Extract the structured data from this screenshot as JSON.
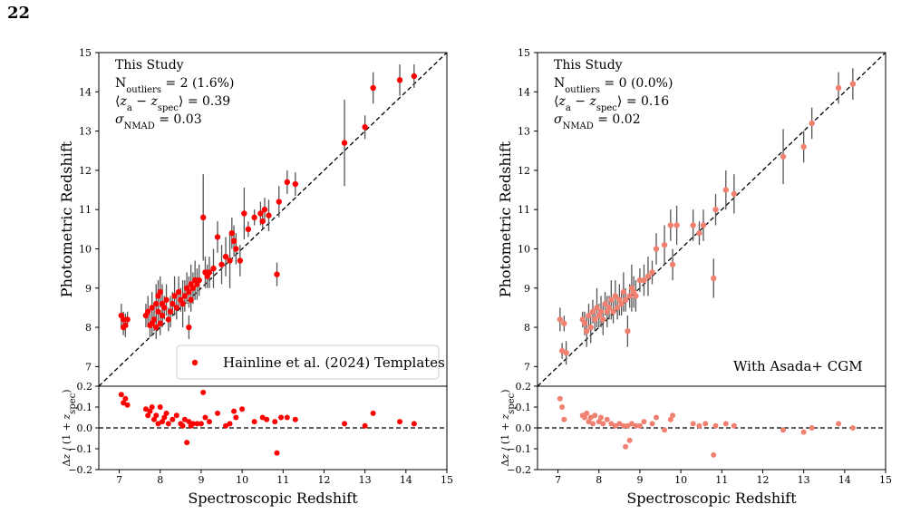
{
  "page": {
    "number": "22"
  },
  "chart_data": [
    {
      "type": "scatter",
      "panel": "left",
      "main": {
        "xlim": [
          6.5,
          15
        ],
        "ylim": [
          6.5,
          15
        ],
        "xticks": [
          "7",
          "8",
          "9",
          "10",
          "11",
          "12",
          "13",
          "14",
          "15"
        ],
        "yticks": [
          "7",
          "8",
          "9",
          "10",
          "11",
          "12",
          "13",
          "14",
          "15"
        ],
        "ylabel": "Photometric Redshift",
        "reference_line": "one-to-one dashed",
        "annotations": [
          "This Study",
          "N_outliers = 2 (1.6%)",
          "⟨z_a − z_spec⟩ = 0.39",
          "σ_NMAD = 0.03"
        ],
        "legend": {
          "label": "Hainline et al. (2024) Templates",
          "position": "lower-right"
        },
        "marker_color": "#ff0000",
        "series": [
          {
            "x": [
              7.05,
              7.1,
              7.1,
              7.15,
              7.2,
              7.65,
              7.7,
              7.75,
              7.8,
              7.8,
              7.85,
              7.9,
              7.9,
              7.95,
              7.95,
              8.0,
              8.0,
              8.05,
              8.05,
              8.1,
              8.15,
              8.2,
              8.25,
              8.3,
              8.35,
              8.4,
              8.45,
              8.5,
              8.55,
              8.6,
              8.65,
              8.7,
              8.7,
              8.75,
              8.75,
              8.8,
              8.85,
              8.9,
              8.95,
              9.05,
              9.1,
              9.15,
              9.2,
              9.3,
              9.4,
              9.5,
              9.6,
              9.7,
              9.75,
              9.8,
              9.85,
              9.95,
              10.05,
              10.15,
              10.3,
              10.45,
              10.5,
              10.55,
              10.65,
              10.85,
              10.9,
              11.1,
              11.3,
              12.5,
              13.0,
              13.2,
              13.85,
              14.2
            ],
            "y": [
              8.3,
              8.2,
              8.0,
              8.05,
              8.2,
              8.3,
              8.4,
              8.05,
              8.5,
              8.1,
              8.2,
              8.6,
              8.0,
              8.4,
              8.8,
              8.1,
              8.9,
              8.3,
              8.6,
              8.5,
              8.7,
              8.2,
              8.4,
              8.6,
              8.8,
              8.5,
              8.9,
              8.7,
              8.6,
              8.8,
              9.0,
              8.0,
              8.9,
              9.1,
              8.7,
              9.0,
              9.2,
              9.1,
              9.2,
              10.8,
              9.4,
              9.3,
              9.4,
              9.5,
              10.3,
              9.6,
              9.8,
              9.7,
              10.4,
              10.2,
              10.0,
              9.7,
              10.9,
              10.5,
              10.8,
              10.9,
              10.7,
              11.0,
              10.85,
              9.35,
              11.2,
              11.7,
              11.65,
              12.7,
              13.1,
              14.1,
              14.3,
              14.4
            ]
          }
        ]
      },
      "residual": {
        "ylim": [
          -0.2,
          0.2
        ],
        "yticks": [
          "−0.2",
          "−0.1",
          "0.0",
          "0.1",
          "0.2"
        ],
        "ylabel": "Δz / (1 + z_spec)",
        "xlabel": "Spectroscopic Redshift",
        "x": [
          7.05,
          7.1,
          7.15,
          7.2,
          7.65,
          7.7,
          7.75,
          7.8,
          7.85,
          7.9,
          7.95,
          8.0,
          8.05,
          8.1,
          8.15,
          8.2,
          8.3,
          8.4,
          8.5,
          8.55,
          8.6,
          8.65,
          8.7,
          8.75,
          8.8,
          8.9,
          9.0,
          9.05,
          9.1,
          9.2,
          9.4,
          9.6,
          9.7,
          9.8,
          9.85,
          10.0,
          10.3,
          10.5,
          10.6,
          10.8,
          10.85,
          10.95,
          11.1,
          11.3,
          12.5,
          13.0,
          13.2,
          13.85,
          14.2
        ],
        "y": [
          0.16,
          0.12,
          0.14,
          0.11,
          0.09,
          0.06,
          0.08,
          0.1,
          0.04,
          0.06,
          0.02,
          0.1,
          0.03,
          0.05,
          0.07,
          0.02,
          0.04,
          0.06,
          0.02,
          0.01,
          0.04,
          -0.07,
          0.03,
          0.01,
          0.02,
          0.02,
          0.02,
          0.17,
          0.05,
          0.03,
          0.07,
          0.01,
          0.02,
          0.08,
          0.05,
          0.09,
          0.03,
          0.05,
          0.04,
          0.03,
          -0.12,
          0.05,
          0.05,
          0.04,
          0.02,
          0.01,
          0.07,
          0.03,
          0.02
        ]
      }
    },
    {
      "type": "scatter",
      "panel": "right",
      "main": {
        "xlim": [
          6.5,
          15
        ],
        "ylim": [
          6.5,
          15
        ],
        "xticks": [
          "7",
          "8",
          "9",
          "10",
          "11",
          "12",
          "13",
          "14",
          "15"
        ],
        "yticks": [
          "7",
          "8",
          "9",
          "10",
          "11",
          "12",
          "13",
          "14",
          "15"
        ],
        "ylabel": "Photometric Redshift",
        "reference_line": "one-to-one dashed",
        "annotations": [
          "This Study",
          "N_outliers = 0 (0.0%)",
          "⟨z_a − z_spec⟩ = 0.16",
          "σ_NMAD = 0.02"
        ],
        "legend": {
          "label": "With Asada+ CGM",
          "position": "lower-right"
        },
        "marker_color": "#f08070",
        "series": [
          {
            "x": [
              7.05,
              7.1,
              7.15,
              7.2,
              7.6,
              7.65,
              7.7,
              7.75,
              7.8,
              7.85,
              7.9,
              7.95,
              8.0,
              8.05,
              8.1,
              8.15,
              8.2,
              8.25,
              8.3,
              8.35,
              8.4,
              8.45,
              8.5,
              8.55,
              8.6,
              8.65,
              8.7,
              8.75,
              8.8,
              8.85,
              8.9,
              9.0,
              9.1,
              9.2,
              9.3,
              9.4,
              9.6,
              9.75,
              9.8,
              9.9,
              10.3,
              10.45,
              10.55,
              10.8,
              10.85,
              11.1,
              11.3,
              12.5,
              13.0,
              13.2,
              13.85,
              14.2
            ],
            "y": [
              8.2,
              7.4,
              8.1,
              7.35,
              8.2,
              8.1,
              7.9,
              8.3,
              8.0,
              8.4,
              8.2,
              8.5,
              8.3,
              8.4,
              8.2,
              8.6,
              8.4,
              8.5,
              8.7,
              8.4,
              8.8,
              8.5,
              8.7,
              8.6,
              8.9,
              8.7,
              7.9,
              8.8,
              9.0,
              8.9,
              8.8,
              9.2,
              9.2,
              9.3,
              9.4,
              10.0,
              10.1,
              10.6,
              9.6,
              10.6,
              10.6,
              10.4,
              10.6,
              9.25,
              11.0,
              11.5,
              11.4,
              12.35,
              12.6,
              13.2,
              14.1,
              14.2
            ]
          }
        ]
      },
      "residual": {
        "ylim": [
          -0.2,
          0.2
        ],
        "yticks": [
          "−0.2",
          "−0.1",
          "0.0",
          "0.1",
          "0.2"
        ],
        "ylabel": "Δz / (1 + z_spec)",
        "xlabel": "Spectroscopic Redshift",
        "x": [
          7.05,
          7.1,
          7.15,
          7.6,
          7.65,
          7.7,
          7.75,
          7.8,
          7.85,
          7.9,
          8.0,
          8.05,
          8.1,
          8.2,
          8.3,
          8.4,
          8.5,
          8.6,
          8.65,
          8.7,
          8.75,
          8.8,
          8.9,
          9.0,
          9.1,
          9.3,
          9.4,
          9.6,
          9.75,
          9.8,
          10.3,
          10.45,
          10.6,
          10.8,
          10.85,
          11.1,
          11.3,
          12.5,
          13.0,
          13.2,
          13.85,
          14.2
        ],
        "y": [
          0.14,
          0.1,
          0.04,
          0.06,
          0.05,
          0.07,
          0.03,
          0.05,
          0.02,
          0.06,
          0.03,
          0.05,
          0.02,
          0.04,
          0.02,
          0.01,
          0.02,
          0.01,
          -0.09,
          0.01,
          -0.06,
          0.02,
          0.01,
          0.01,
          0.03,
          0.02,
          0.05,
          -0.01,
          0.04,
          0.06,
          0.02,
          0.01,
          0.02,
          -0.13,
          0.01,
          0.02,
          0.01,
          -0.01,
          -0.02,
          0.0,
          0.02,
          0.0
        ]
      }
    }
  ]
}
